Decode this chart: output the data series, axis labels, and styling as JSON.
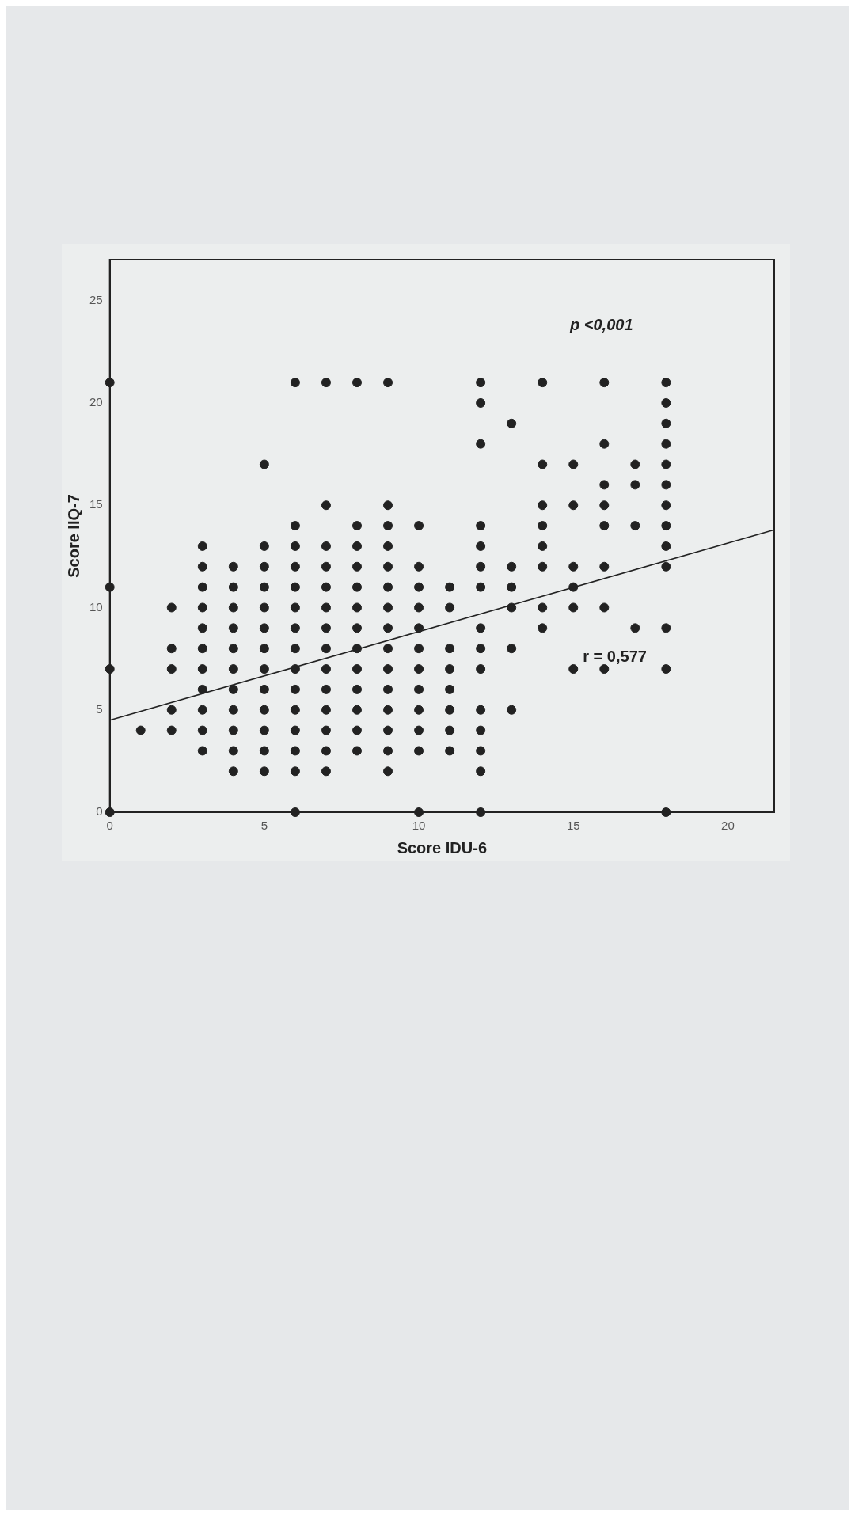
{
  "chart_data": {
    "type": "scatter",
    "xlabel": "Score IDU-6",
    "ylabel": "Score IIQ-7",
    "xlim": [
      0,
      21.5
    ],
    "ylim": [
      0,
      27
    ],
    "xticks": [
      0,
      5,
      10,
      15,
      20
    ],
    "yticks": [
      0,
      5,
      10,
      15,
      20,
      25
    ],
    "grid": false,
    "legend": false,
    "marker": "circle",
    "annotations": [
      "p <0,001",
      "r = 0,577"
    ],
    "series": [
      {
        "type": "scatter",
        "color": "#222222",
        "x": [
          0,
          0,
          0,
          0,
          1,
          2,
          2,
          2,
          2,
          2,
          3,
          3,
          3,
          3,
          3,
          3,
          3,
          3,
          3,
          3,
          3,
          4,
          4,
          4,
          4,
          4,
          4,
          4,
          4,
          4,
          4,
          4,
          5,
          5,
          5,
          5,
          5,
          5,
          5,
          5,
          5,
          5,
          5,
          5,
          5,
          6,
          6,
          6,
          6,
          6,
          6,
          6,
          6,
          6,
          6,
          6,
          6,
          6,
          6,
          6,
          7,
          7,
          7,
          7,
          7,
          7,
          7,
          7,
          7,
          7,
          7,
          7,
          7,
          7,
          8,
          8,
          8,
          8,
          8,
          8,
          8,
          8,
          8,
          8,
          8,
          8,
          8,
          9,
          9,
          9,
          9,
          9,
          9,
          9,
          9,
          9,
          9,
          9,
          9,
          9,
          9,
          9,
          10,
          10,
          10,
          10,
          10,
          10,
          10,
          10,
          10,
          10,
          10,
          10,
          11,
          11,
          11,
          11,
          11,
          11,
          11,
          11,
          12,
          12,
          12,
          12,
          12,
          12,
          12,
          12,
          12,
          12,
          12,
          12,
          12,
          12,
          12,
          13,
          13,
          13,
          13,
          13,
          13,
          14,
          14,
          14,
          14,
          14,
          14,
          14,
          14,
          15,
          15,
          15,
          15,
          15,
          15,
          16,
          16,
          16,
          16,
          16,
          16,
          16,
          16,
          17,
          17,
          17,
          17,
          18,
          18,
          18,
          18,
          18,
          18,
          18,
          18,
          18,
          18,
          18,
          18,
          18
        ],
        "values": [
          21,
          11,
          7,
          0,
          4,
          10,
          8,
          7,
          5,
          4,
          13,
          12,
          11,
          10,
          9,
          8,
          7,
          6,
          5,
          4,
          3,
          12,
          11,
          10,
          9,
          8,
          7,
          6,
          5,
          4,
          3,
          2,
          17,
          13,
          12,
          11,
          10,
          9,
          8,
          7,
          6,
          5,
          4,
          3,
          2,
          21,
          14,
          13,
          12,
          11,
          10,
          9,
          8,
          7,
          6,
          5,
          4,
          3,
          2,
          0,
          21,
          15,
          13,
          12,
          11,
          10,
          9,
          8,
          7,
          6,
          5,
          4,
          3,
          2,
          21,
          14,
          13,
          12,
          11,
          10,
          9,
          8,
          7,
          6,
          5,
          4,
          3,
          21,
          15,
          14,
          13,
          12,
          11,
          10,
          9,
          8,
          7,
          6,
          5,
          4,
          3,
          2,
          14,
          12,
          11,
          10,
          9,
          8,
          7,
          6,
          5,
          4,
          3,
          0,
          11,
          10,
          8,
          7,
          6,
          5,
          4,
          3,
          21,
          20,
          18,
          14,
          13,
          12,
          11,
          9,
          8,
          7,
          5,
          4,
          3,
          2,
          0,
          19,
          12,
          11,
          10,
          8,
          5,
          21,
          17,
          15,
          14,
          13,
          12,
          10,
          9,
          17,
          15,
          12,
          11,
          10,
          7,
          21,
          18,
          16,
          15,
          14,
          12,
          10,
          7,
          17,
          16,
          14,
          9,
          21,
          20,
          19,
          18,
          17,
          16,
          15,
          14,
          13,
          12,
          9,
          7,
          0
        ]
      },
      {
        "type": "line",
        "color": "#222222",
        "marker": "none",
        "line_style": "solid",
        "x": [
          0,
          21.5
        ],
        "values": [
          4.5,
          13.8
        ]
      }
    ]
  }
}
